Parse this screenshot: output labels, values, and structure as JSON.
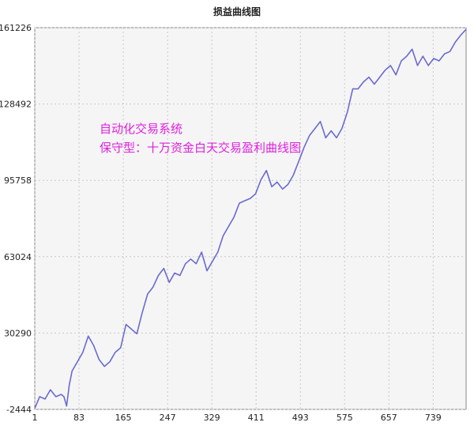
{
  "chart_data": {
    "type": "line",
    "title": "损益曲线图",
    "xlabel": "",
    "ylabel": "",
    "xlim": [
      1,
      800
    ],
    "ylim": [
      -2444,
      161226
    ],
    "x_ticks": [
      "1",
      "83",
      "165",
      "247",
      "329",
      "411",
      "493",
      "575",
      "657",
      "739"
    ],
    "y_ticks": [
      "161226",
      "128492",
      "95758",
      "63024",
      "30290",
      "-2444"
    ],
    "grid": true,
    "line_color": "#6a6ad0",
    "annotations": [
      "自动化交易系统",
      "保守型：十万资金白天交易盈利曲线图"
    ],
    "series": [
      {
        "x": [
          1,
          10,
          20,
          30,
          40,
          50,
          55,
          60,
          65,
          70,
          80,
          90,
          100,
          110,
          120,
          130,
          140,
          150,
          160,
          170,
          180,
          190,
          200,
          210,
          220,
          230,
          240,
          250,
          260,
          270,
          280,
          290,
          300,
          310,
          320,
          330,
          340,
          350,
          360,
          370,
          380,
          390,
          400,
          410,
          420,
          430,
          440,
          450,
          460,
          470,
          480,
          490,
          500,
          510,
          520,
          530,
          540,
          550,
          560,
          570,
          580,
          590,
          600,
          610,
          620,
          630,
          640,
          650,
          660,
          670,
          680,
          690,
          700,
          710,
          720,
          730,
          740,
          750,
          760,
          770,
          780,
          790,
          800
        ],
        "values": [
          -2000,
          3000,
          2000,
          6000,
          3000,
          4000,
          3000,
          -1000,
          8000,
          14000,
          18000,
          22000,
          29000,
          25000,
          19000,
          16000,
          18000,
          22000,
          24000,
          34000,
          32000,
          30000,
          39000,
          47000,
          50000,
          55000,
          58000,
          52000,
          56000,
          55000,
          60000,
          62000,
          60000,
          65000,
          57000,
          61000,
          65000,
          72000,
          76000,
          80000,
          86000,
          87000,
          88000,
          90000,
          96000,
          100000,
          93000,
          95000,
          92000,
          94000,
          98000,
          104000,
          110000,
          115000,
          118000,
          121000,
          114000,
          117000,
          114000,
          118000,
          125000,
          135000,
          135000,
          138000,
          140000,
          137000,
          140000,
          143000,
          145000,
          141000,
          147000,
          149000,
          152000,
          145000,
          149000,
          145000,
          148000,
          147000,
          150000,
          151000,
          155000,
          158000,
          160500
        ]
      }
    ]
  }
}
